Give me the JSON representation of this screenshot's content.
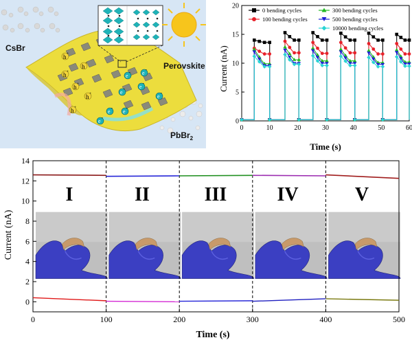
{
  "schematic": {
    "labels": {
      "csbr": "CsBr",
      "perovskite": "Perovskite",
      "pbbr2_main": "PbBr",
      "pbbr2_sub": "2"
    },
    "holes": [
      {
        "main": "h",
        "sup": "+"
      },
      {
        "main": "h",
        "sup": "+"
      },
      {
        "main": "h",
        "sup": "+"
      },
      {
        "main": "h",
        "sup": "+"
      },
      {
        "main": "h",
        "sup": "+"
      },
      {
        "main": "h",
        "sup": "+"
      }
    ],
    "electrons": [
      {
        "main": "e",
        "sup": "-"
      },
      {
        "main": "e",
        "sup": "-"
      },
      {
        "main": "e",
        "sup": "-"
      },
      {
        "main": "e",
        "sup": "-"
      },
      {
        "main": "e",
        "sup": "-"
      },
      {
        "main": "e",
        "sup": "-"
      },
      {
        "main": "e",
        "sup": "-"
      },
      {
        "main": "e",
        "sup": "-"
      }
    ],
    "colors": {
      "background": "#d7e6f5",
      "sheet": "#ecdd3d",
      "sun": "#f7c51c",
      "crystal": "#1fb3b8"
    }
  },
  "chart_data": [
    {
      "type": "line",
      "xlabel": "Time (s)",
      "ylabel": "Current (nA)",
      "xlim": [
        0,
        60
      ],
      "ylim": [
        0,
        20
      ],
      "xticks": [
        "0",
        "10",
        "20",
        "30",
        "40",
        "50",
        "60"
      ],
      "yticks": [
        "0",
        "5",
        "10",
        "15",
        "20"
      ],
      "legend_position": "top",
      "on_intervals": [
        [
          4.5,
          10
        ],
        [
          15.5,
          20.5
        ],
        [
          25.5,
          30.5
        ],
        [
          35.5,
          40.5
        ],
        [
          45.5,
          50.5
        ],
        [
          55.5,
          60
        ]
      ],
      "series": [
        {
          "name": "0 bending cycles",
          "marker": "square",
          "color": "#000000",
          "on_levels": [
            [
              14.0,
              13.6
            ],
            [
              15.3,
              14.0
            ],
            [
              15.3,
              14.0
            ],
            [
              15.2,
              14.0
            ],
            [
              15.2,
              14.0
            ],
            [
              15.0,
              14.0
            ]
          ]
        },
        {
          "name": "100 bending cycles",
          "marker": "circle",
          "color": "#e8222b",
          "on_levels": [
            [
              12.6,
              11.6
            ],
            [
              13.8,
              11.8
            ],
            [
              13.6,
              11.7
            ],
            [
              13.6,
              11.8
            ],
            [
              13.4,
              11.6
            ],
            [
              13.4,
              11.6
            ]
          ]
        },
        {
          "name": "300 bending cycles",
          "marker": "triangle-up",
          "color": "#22b822",
          "on_levels": [
            [
              12.4,
              9.9
            ],
            [
              12.8,
              10.6
            ],
            [
              12.6,
              10.4
            ],
            [
              12.4,
              10.4
            ],
            [
              12.2,
              10.1
            ],
            [
              12.3,
              10.2
            ]
          ]
        },
        {
          "name": "500 bending cycles",
          "marker": "triangle-down",
          "color": "#1f1fd6",
          "on_levels": [
            [
              12.0,
              9.6
            ],
            [
              12.3,
              10.0
            ],
            [
              12.2,
              10.0
            ],
            [
              12.0,
              10.0
            ],
            [
              11.8,
              9.8
            ],
            [
              11.9,
              9.9
            ]
          ]
        },
        {
          "name": "10000 bending cycles",
          "marker": "diamond",
          "color": "#2ad4d4",
          "on_levels": [
            [
              11.2,
              9.4
            ],
            [
              11.5,
              9.8
            ],
            [
              11.3,
              9.6
            ],
            [
              11.2,
              9.6
            ],
            [
              11.0,
              9.4
            ],
            [
              11.1,
              9.5
            ]
          ]
        }
      ]
    },
    {
      "type": "line",
      "xlabel": "Time (s)",
      "ylabel": "Current (nA)",
      "xlim": [
        0,
        500
      ],
      "ylim": [
        -1,
        14
      ],
      "xticks": [
        "0",
        "100",
        "200",
        "300",
        "400",
        "500"
      ],
      "yticks": [
        "0",
        "2",
        "4",
        "6",
        "8",
        "10",
        "12",
        "14"
      ],
      "dividers": [
        100,
        200,
        300,
        400
      ],
      "segment_labels": [
        "I",
        "II",
        "III",
        "IV",
        "V"
      ],
      "series": [
        {
          "segment": "I",
          "color": "#8b1a1a",
          "high": {
            "x": [
              0,
              100
            ],
            "y": [
              12.6,
              12.55
            ]
          },
          "low": {
            "x": [
              0,
              100
            ],
            "y": [
              0.4,
              0.1
            ]
          },
          "low_color": "#e01818"
        },
        {
          "segment": "II",
          "color": "#2626d8",
          "high": {
            "x": [
              100,
              200
            ],
            "y": [
              12.45,
              12.5
            ]
          },
          "low": {
            "x": [
              100,
              200
            ],
            "y": [
              0.05,
              0.0
            ]
          },
          "low_color": "#d42ad4"
        },
        {
          "segment": "III",
          "color": "#1f8f1f",
          "high": {
            "x": [
              200,
              300
            ],
            "y": [
              12.5,
              12.55
            ]
          },
          "low": {
            "x": [
              200,
              300
            ],
            "y": [
              0.05,
              0.1
            ]
          },
          "low_color": "#2626d8"
        },
        {
          "segment": "IV",
          "color": "#9b2bb0",
          "high": {
            "x": [
              300,
              400
            ],
            "y": [
              12.55,
              12.5
            ]
          },
          "low": {
            "x": [
              300,
              400
            ],
            "y": [
              0.05,
              0.3
            ]
          },
          "low_color": "#1f1fc0"
        },
        {
          "segment": "V",
          "color": "#a01c1c",
          "high": {
            "x": [
              400,
              500
            ],
            "y": [
              12.6,
              12.25
            ]
          },
          "low": {
            "x": [
              400,
              500
            ],
            "y": [
              0.3,
              0.15
            ]
          },
          "low_color": "#7a7a10"
        }
      ]
    }
  ]
}
